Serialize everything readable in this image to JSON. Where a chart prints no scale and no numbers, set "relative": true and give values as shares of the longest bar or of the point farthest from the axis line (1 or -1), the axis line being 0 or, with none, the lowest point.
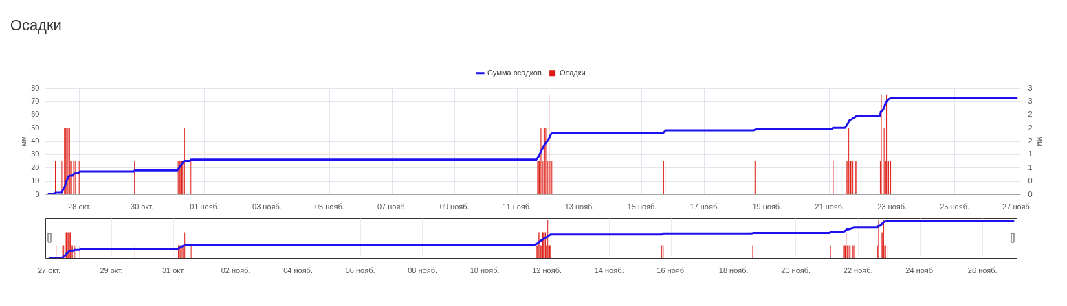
{
  "chart_data": [
    {
      "type": "bar",
      "title": "Осадки",
      "ylabel": "мм",
      "y2label": "мм",
      "legend": "top",
      "grid": true,
      "xlim": [
        "--10-27T00:40",
        "--11-27"
      ],
      "xticks": [
        {
          "value": "--10-28",
          "label": "28 окт."
        },
        {
          "value": "--10-30",
          "label": "30 окт."
        },
        {
          "value": "--11-01",
          "label": "01 нояб."
        },
        {
          "value": "--11-03",
          "label": "03 нояб."
        },
        {
          "value": "--11-05",
          "label": "05 нояб."
        },
        {
          "value": "--11-07",
          "label": "07 нояб."
        },
        {
          "value": "--11-09",
          "label": "09 нояб."
        },
        {
          "value": "--11-11",
          "label": "11 нояб."
        },
        {
          "value": "--11-13",
          "label": "13 нояб."
        },
        {
          "value": "--11-15",
          "label": "15 нояб."
        },
        {
          "value": "--11-17",
          "label": "17 нояб."
        },
        {
          "value": "--11-19",
          "label": "19 нояб."
        },
        {
          "value": "--11-21",
          "label": "21 нояб."
        },
        {
          "value": "--11-23",
          "label": "23 нояб."
        },
        {
          "value": "--11-25",
          "label": "25 нояб."
        },
        {
          "value": "--11-27",
          "label": "27 нояб."
        }
      ],
      "ylim": [
        0,
        80
      ],
      "yticks": [
        0,
        10,
        20,
        30,
        40,
        50,
        60,
        70,
        80
      ],
      "y2lim": [
        0,
        3.2
      ],
      "y2ticks": [
        {
          "value": 0,
          "label": "0"
        },
        {
          "value": 0.4,
          "label": "0"
        },
        {
          "value": 0.8,
          "label": "1"
        },
        {
          "value": 1.2,
          "label": "1"
        },
        {
          "value": 1.6,
          "label": "2"
        },
        {
          "value": 2,
          "label": "2"
        },
        {
          "value": 2.4,
          "label": "2"
        },
        {
          "value": 2.8,
          "label": "3"
        },
        {
          "value": 3.2,
          "label": "3"
        }
      ],
      "series": [
        {
          "name": "Сумма осадков",
          "type": "line",
          "color": "#1f10ee",
          "x": [
            "--10-27T00:40",
            "--10-27T05:00",
            "--10-27T05:40",
            "--10-27T10:30",
            "--10-27T11:00",
            "--10-27T13:00",
            "--10-27T14:30",
            "--10-27T16:00",
            "--10-27T17:30",
            "--10-27T19:00",
            "--10-27T20:00",
            "--10-27T23:30",
            "--10-28T00:30",
            "--10-29T18:00",
            "--10-29T19:00",
            "--10-31T03:30",
            "--10-31T08:30",
            "--10-31T13:00",
            "--10-31T14:00",
            "--11-11T15:00",
            "--11-11T17:00",
            "--11-11T19:00",
            "--11-11T20:30",
            "--11-11T22:30",
            "--11-12T00:00",
            "--11-12T02:00",
            "--11-12T03:00",
            "--11-15T16:30",
            "--11-15T18:30",
            "--11-18T14:00",
            "--11-18T16:00",
            "--11-21T02:00",
            "--11-21T03:00",
            "--11-21T12:00",
            "--11-21T14:00",
            "--11-21T15:30",
            "--11-21T17:30",
            "--11-21T19:00",
            "--11-21T20:30",
            "--11-21T21:00",
            "--11-22T15:00",
            "--11-22T15:30",
            "--11-22T17:00",
            "--11-22T18:00",
            "--11-22T19:30",
            "--11-22T21:00",
            "--11-22T23:00",
            "--11-27T00:00"
          ],
          "values": [
            0,
            0,
            1,
            1,
            2.5,
            6,
            10.5,
            13.5,
            14,
            14,
            15.5,
            16,
            17,
            17,
            18,
            18,
            25,
            25,
            26,
            26,
            28.5,
            33,
            35.5,
            39,
            40.5,
            44.5,
            46,
            46,
            48,
            48,
            49,
            49,
            50,
            50,
            52.5,
            55.5,
            56.5,
            57.5,
            58.5,
            59,
            59,
            62,
            63,
            64.5,
            69,
            71,
            72,
            72
          ]
        },
        {
          "name": "Осадки",
          "axis": "y2",
          "color": "#dd1a12",
          "x": [
            "--10-27T05:40",
            "--10-27T10:40",
            "--10-27T11:30",
            "--10-27T12:40",
            "--10-27T13:30",
            "--10-27T14:20",
            "--10-27T15:00",
            "--10-27T16:00",
            "--10-27T16:40",
            "--10-27T17:30",
            "--10-27T18:10",
            "--10-27T19:40",
            "--10-27T20:50",
            "--10-28T00:00",
            "--10-29T18:30",
            "--10-31T04:00",
            "--10-31T04:40",
            "--10-31T05:20",
            "--10-31T06:00",
            "--10-31T06:50",
            "--10-31T07:30",
            "--10-31T08:50",
            "--10-31T13:50",
            "--11-11T16:00",
            "--11-11T16:40",
            "--11-11T17:20",
            "--11-11T18:00",
            "--11-11T18:40",
            "--11-11T19:30",
            "--11-11T20:10",
            "--11-11T21:00",
            "--11-11T21:40",
            "--11-11T22:20",
            "--11-11T23:10",
            "--11-11T23:50",
            "--11-12T00:50",
            "--11-12T01:30",
            "--11-12T02:20",
            "--11-12T03:00",
            "--11-15T16:50",
            "--11-15T18:00",
            "--11-18T15:00",
            "--11-21T03:00",
            "--11-21T13:00",
            "--11-21T13:40",
            "--11-21T14:20",
            "--11-21T15:00",
            "--11-21T15:50",
            "--11-21T16:30",
            "--11-21T17:20",
            "--11-21T18:10",
            "--11-21T20:20",
            "--11-21T21:00",
            "--11-22T15:10",
            "--11-22T16:00",
            "--11-22T18:10",
            "--11-22T18:50",
            "--11-22T19:20",
            "--11-22T20:00",
            "--11-22T20:50",
            "--11-22T21:30",
            "--11-22T23:10"
          ],
          "values": [
            1,
            1,
            1,
            2,
            2,
            2,
            2,
            2,
            2,
            1,
            1,
            1,
            1,
            1,
            1,
            1,
            1,
            1,
            1,
            1,
            1,
            2,
            1,
            1,
            1,
            1,
            2,
            2,
            1,
            1,
            2,
            2,
            2,
            2,
            1,
            3,
            1,
            1,
            1,
            1,
            1,
            1,
            1,
            1,
            1,
            1,
            2,
            1,
            1,
            1,
            1,
            1,
            1,
            1,
            3,
            2,
            2,
            1,
            3,
            1,
            1,
            1
          ]
        }
      ]
    },
    {
      "type": "bar",
      "grid": "x",
      "tick_labels": "x",
      "relative": true,
      "xlim": [
        "--10-27",
        "--11-27"
      ],
      "xticks": [
        {
          "value": "--10-27",
          "label": "27 окт."
        },
        {
          "value": "--10-29",
          "label": "29 окт."
        },
        {
          "value": "--10-31",
          "label": "31 окт."
        },
        {
          "value": "--11-02",
          "label": "02 нояб."
        },
        {
          "value": "--11-04",
          "label": "04 нояб."
        },
        {
          "value": "--11-06",
          "label": "06 нояб."
        },
        {
          "value": "--11-08",
          "label": "08 нояб."
        },
        {
          "value": "--11-10",
          "label": "10 нояб."
        },
        {
          "value": "--11-12",
          "label": "12 нояб."
        },
        {
          "value": "--11-14",
          "label": "14 нояб."
        },
        {
          "value": "--11-16",
          "label": "16 нояб."
        },
        {
          "value": "--11-18",
          "label": "18 нояб."
        },
        {
          "value": "--11-20",
          "label": "20 нояб."
        },
        {
          "value": "--11-22",
          "label": "22 нояб."
        },
        {
          "value": "--11-24",
          "label": "24 нояб."
        },
        {
          "value": "--11-26",
          "label": "26 нояб."
        }
      ],
      "series": [
        {
          "type": "line",
          "color": "#1f10ee",
          "x": [
            "--10-27T00:40",
            "--10-27T05:00",
            "--10-27T05:40",
            "--10-27T10:30",
            "--10-27T11:00",
            "--10-27T13:00",
            "--10-27T14:30",
            "--10-27T16:00",
            "--10-27T17:30",
            "--10-27T19:00",
            "--10-27T20:00",
            "--10-27T23:30",
            "--10-28T00:30",
            "--10-29T18:00",
            "--10-29T19:00",
            "--10-31T03:30",
            "--10-31T08:30",
            "--10-31T13:00",
            "--10-31T14:00",
            "--11-11T15:00",
            "--11-11T17:00",
            "--11-11T19:00",
            "--11-11T20:30",
            "--11-11T22:30",
            "--11-12T00:00",
            "--11-12T02:00",
            "--11-12T03:00",
            "--11-15T16:30",
            "--11-15T18:30",
            "--11-18T14:00",
            "--11-18T16:00",
            "--11-21T02:00",
            "--11-21T03:00",
            "--11-21T12:00",
            "--11-21T14:00",
            "--11-21T15:30",
            "--11-21T17:30",
            "--11-21T19:00",
            "--11-21T20:30",
            "--11-21T21:00",
            "--11-22T15:00",
            "--11-22T15:30",
            "--11-22T17:00",
            "--11-22T18:00",
            "--11-22T19:30",
            "--11-22T21:00",
            "--11-22T23:00",
            "--11-27T00:00"
          ],
          "values": [
            0,
            0,
            0.01,
            0.01,
            0.03,
            0.08,
            0.14,
            0.18,
            0.19,
            0.19,
            0.21,
            0.21,
            0.23,
            0.23,
            0.24,
            0.24,
            0.33,
            0.33,
            0.35,
            0.35,
            0.38,
            0.44,
            0.47,
            0.52,
            0.54,
            0.59,
            0.61,
            0.61,
            0.64,
            0.64,
            0.65,
            0.65,
            0.67,
            0.67,
            0.7,
            0.74,
            0.75,
            0.77,
            0.78,
            0.79,
            0.79,
            0.83,
            0.84,
            0.86,
            0.92,
            0.95,
            0.96,
            0.96
          ]
        },
        {
          "color": "#dd1a12",
          "x": [
            "--10-27T05:40",
            "--10-27T10:40",
            "--10-27T11:30",
            "--10-27T12:40",
            "--10-27T13:30",
            "--10-27T14:20",
            "--10-27T15:00",
            "--10-27T16:00",
            "--10-27T16:40",
            "--10-27T17:30",
            "--10-27T18:10",
            "--10-27T19:40",
            "--10-27T20:50",
            "--10-28T00:00",
            "--10-29T18:30",
            "--10-31T04:00",
            "--10-31T04:40",
            "--10-31T05:20",
            "--10-31T06:00",
            "--10-31T06:50",
            "--10-31T07:30",
            "--10-31T08:50",
            "--10-31T13:50",
            "--11-11T16:00",
            "--11-11T16:40",
            "--11-11T17:20",
            "--11-11T18:00",
            "--11-11T18:40",
            "--11-11T19:30",
            "--11-11T20:10",
            "--11-11T21:00",
            "--11-11T21:40",
            "--11-11T22:20",
            "--11-11T23:10",
            "--11-11T23:50",
            "--11-12T00:50",
            "--11-12T01:30",
            "--11-12T02:20",
            "--11-12T03:00",
            "--11-15T16:50",
            "--11-15T18:00",
            "--11-18T15:00",
            "--11-21T03:00",
            "--11-21T13:00",
            "--11-21T13:40",
            "--11-21T14:20",
            "--11-21T15:00",
            "--11-21T15:50",
            "--11-21T16:30",
            "--11-21T17:20",
            "--11-21T18:10",
            "--11-21T20:20",
            "--11-21T21:00",
            "--11-22T15:10",
            "--11-22T16:00",
            "--11-22T18:10",
            "--11-22T18:50",
            "--11-22T19:20",
            "--11-22T20:00",
            "--11-22T20:50",
            "--11-22T21:30",
            "--11-22T23:10"
          ],
          "values": [
            0.33,
            0.33,
            0.33,
            0.67,
            0.67,
            0.67,
            0.67,
            0.67,
            0.67,
            0.33,
            0.33,
            0.33,
            0.33,
            0.33,
            0.33,
            0.33,
            0.33,
            0.33,
            0.33,
            0.33,
            0.33,
            0.67,
            0.33,
            0.33,
            0.33,
            0.33,
            0.67,
            0.67,
            0.33,
            0.33,
            0.67,
            0.67,
            0.67,
            0.67,
            0.33,
            1,
            0.33,
            0.33,
            0.33,
            0.33,
            0.33,
            0.33,
            0.33,
            0.33,
            0.33,
            0.33,
            0.67,
            0.33,
            0.33,
            0.33,
            0.33,
            0.33,
            0.33,
            0.33,
            1,
            0.67,
            0.67,
            0.33,
            1,
            0.33,
            0.33,
            0.33
          ]
        }
      ]
    }
  ]
}
